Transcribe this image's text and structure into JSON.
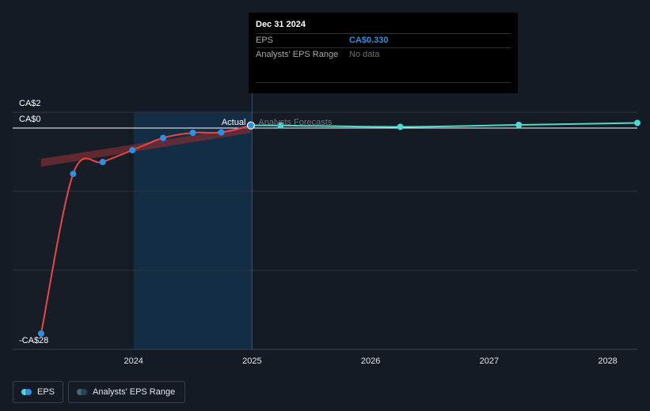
{
  "tooltip": {
    "date": "Dec 31 2024",
    "rows": [
      {
        "label": "EPS",
        "value": "CA$0.330"
      },
      {
        "label": "Analysts' EPS Range",
        "value": "No data"
      }
    ]
  },
  "legend": {
    "eps": "EPS",
    "range": "Analysts' EPS Range"
  },
  "colors": {
    "background": "#151b24",
    "actual_line": "#e8474a",
    "forecast_line": "#4fd8cf",
    "point": "#2f8fe0",
    "range_band": "#7a2e34",
    "highlight": "#13304a"
  },
  "chart_data": {
    "type": "line",
    "y_tick_labels": [
      "CA$2",
      "CA$0",
      "-CA$28"
    ],
    "y_ticks": [
      2,
      0,
      -28
    ],
    "ylim": [
      -28,
      2
    ],
    "x_tick_labels": [
      "2024",
      "2025",
      "2026",
      "2027",
      "2028"
    ],
    "x_ticks": [
      2024,
      2025,
      2026,
      2027,
      2028
    ],
    "xlim": [
      2022.98,
      2028.25
    ],
    "divider_labels": {
      "actual": "Actual",
      "forecast": "Analysts Forecasts"
    },
    "divider_x": 2025.0,
    "highlight_range": [
      2024.0,
      2025.0
    ],
    "series": [
      {
        "name": "EPS",
        "role": "actual",
        "points": [
          [
            2023.22,
            -26.0
          ],
          [
            2023.49,
            -5.8
          ],
          [
            2023.74,
            -4.3
          ],
          [
            2023.99,
            -2.8
          ],
          [
            2024.25,
            -1.25
          ],
          [
            2024.5,
            -0.6
          ],
          [
            2024.74,
            -0.55
          ],
          [
            2024.99,
            0.33
          ]
        ]
      },
      {
        "name": "EPS",
        "role": "forecast",
        "points": [
          [
            2024.99,
            0.33
          ],
          [
            2025.24,
            0.33
          ],
          [
            2026.25,
            0.15
          ],
          [
            2027.25,
            0.4
          ],
          [
            2028.25,
            0.65
          ]
        ]
      }
    ],
    "range_band": {
      "upper": [
        [
          2023.22,
          -3.9
        ],
        [
          2024.99,
          0.2
        ]
      ],
      "lower": [
        [
          2023.22,
          -4.9
        ],
        [
          2024.99,
          -0.6
        ]
      ]
    }
  }
}
